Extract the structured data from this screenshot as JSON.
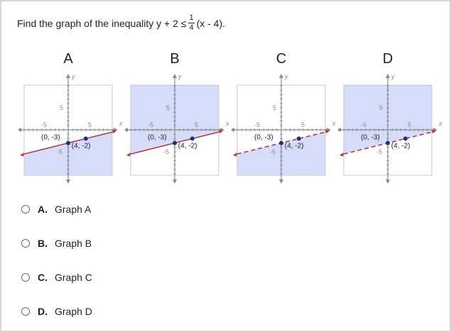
{
  "question": {
    "prefix": "Find the graph of the inequality y + 2 ≤",
    "fraction": {
      "numerator": "1",
      "denominator": "4"
    },
    "suffix": "(x - 4)."
  },
  "graphs": [
    {
      "label": "A",
      "shading": "below",
      "line_style": "solid"
    },
    {
      "label": "B",
      "shading": "above",
      "line_style": "solid"
    },
    {
      "label": "C",
      "shading": "below",
      "line_style": "dashed"
    },
    {
      "label": "D",
      "shading": "above",
      "line_style": "dashed"
    }
  ],
  "graph_common": {
    "x_axis_label": "x",
    "y_axis_label": "y",
    "tick_pos": "5",
    "tick_neg": "-5",
    "point1_label": "(0, -3)",
    "point2_label": "(4, -2)",
    "shade_color": "#d5ddfb",
    "line_color": "#b23a3a",
    "point_color": "#1b2f8c"
  },
  "options": [
    {
      "letter": "A.",
      "text": "Graph A"
    },
    {
      "letter": "B.",
      "text": "Graph B"
    },
    {
      "letter": "C.",
      "text": "Graph C"
    },
    {
      "letter": "D.",
      "text": "Graph D"
    }
  ]
}
